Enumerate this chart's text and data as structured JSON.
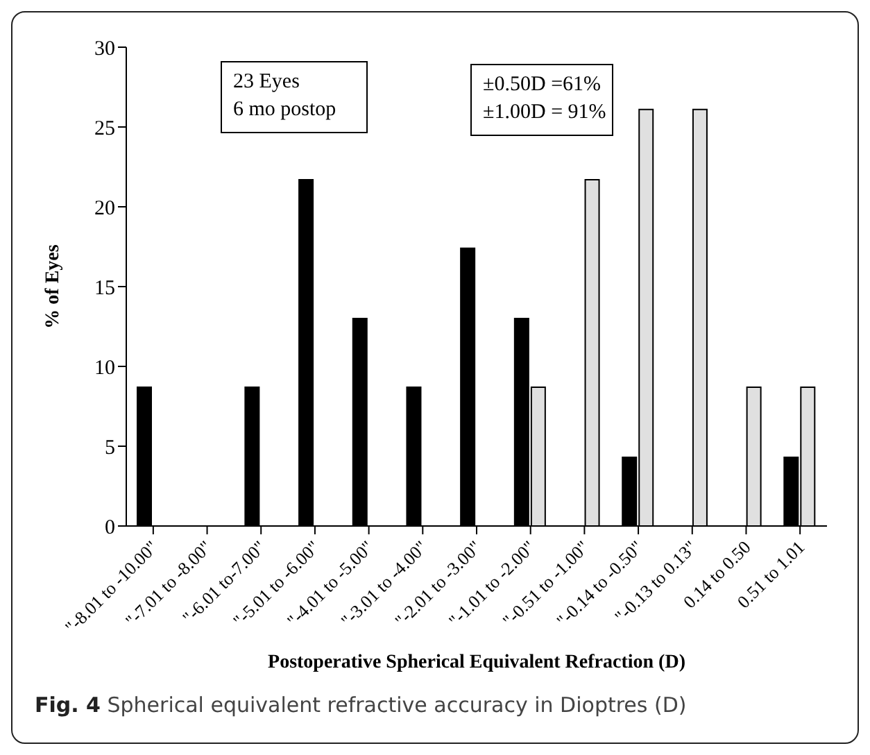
{
  "chart_data": {
    "type": "bar",
    "xlabel": "Postoperative Spherical Equivalent Refraction (D)",
    "ylabel": "% of Eyes",
    "categories": [
      "\"-8.01 to -10.00\"",
      "\"-7.01 to -8.00\"",
      "\"-6.01 to-7.00\"",
      "\"-5.01 to -6.00\"",
      "\"-4.01 to -5.00\"",
      "\"-3.01 to -4.00\"",
      "\"-2.01 to -3.00\"",
      "\"-1.01 to -2.00\"",
      "\"-0.51 to -1.00\"",
      "\"-0.14 to -0.50\"",
      "\"-0.13 to 0.13\"",
      "0.14 to 0.50",
      "0.51 to 1.01"
    ],
    "series": [
      {
        "color": "#000000",
        "values": [
          8.7,
          0,
          8.7,
          21.7,
          13.0,
          8.7,
          17.4,
          13.0,
          0,
          4.3,
          0,
          0,
          4.3
        ]
      },
      {
        "color": "#e0e0e0",
        "values": [
          0,
          0,
          0,
          0,
          0,
          0,
          0,
          8.7,
          21.7,
          26.1,
          26.1,
          8.7,
          8.7
        ]
      }
    ],
    "ylim": [
      0,
      30
    ],
    "yticks": [
      0,
      5,
      10,
      15,
      20,
      25,
      30
    ],
    "grid": false,
    "legend": false,
    "annotations": [
      "23 Eyes",
      "6 mo postop",
      "±0.50D =61%",
      "±1.00D = 91%",
      "Fig. 4 Spherical equivalent refractive accuracy in Dioptres (D)"
    ]
  }
}
